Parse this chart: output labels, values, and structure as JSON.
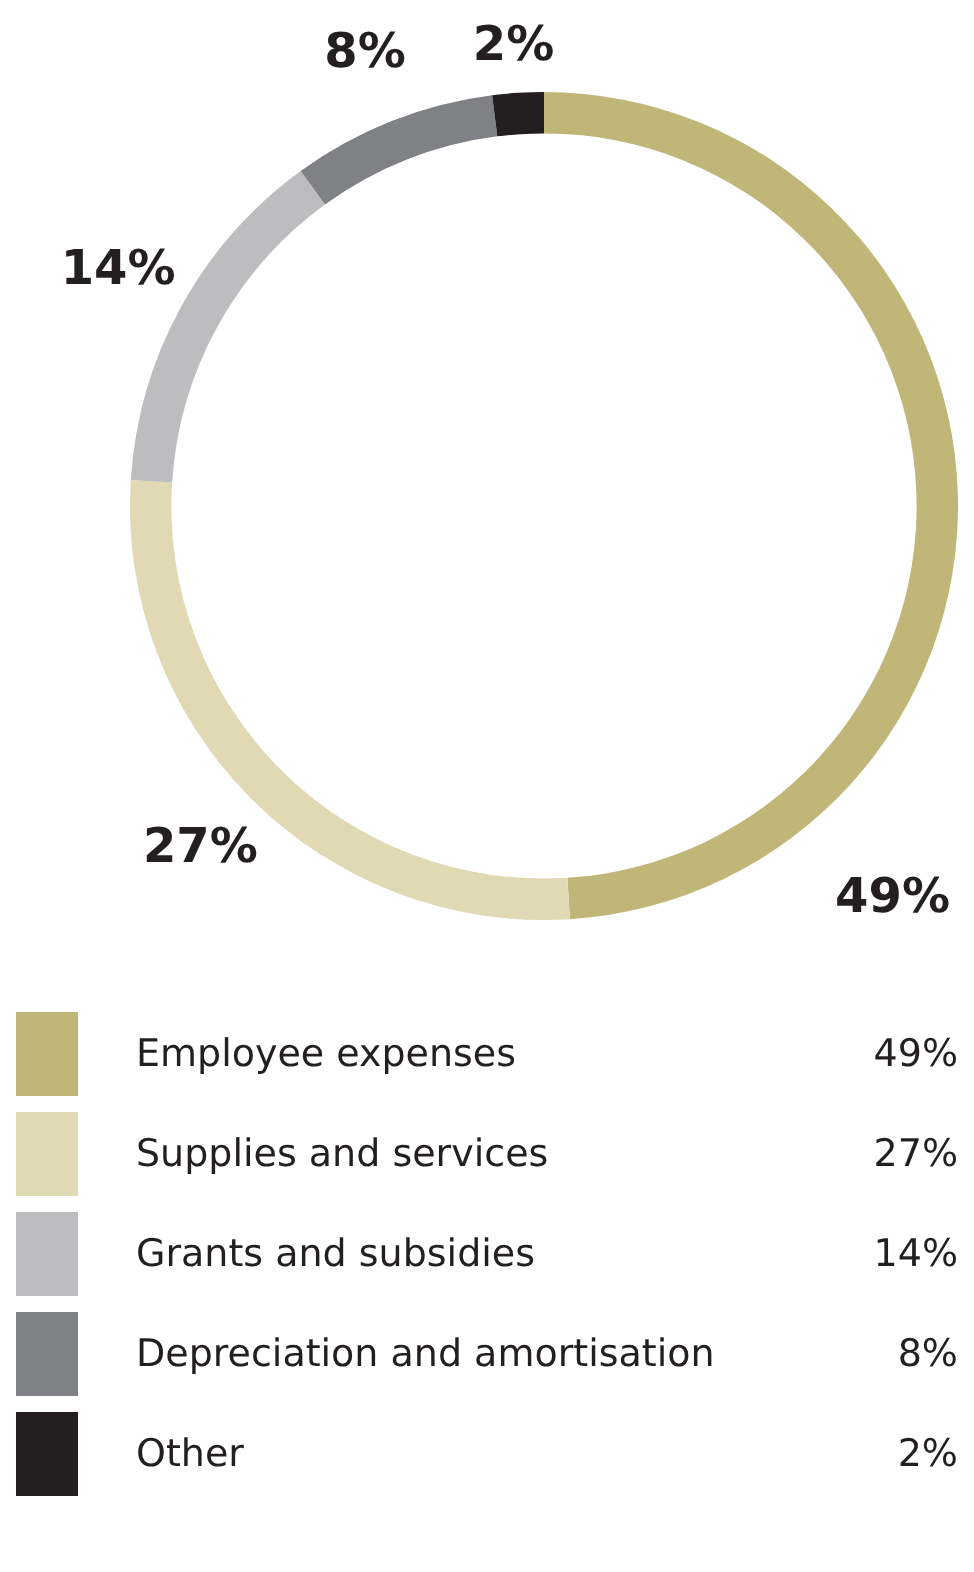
{
  "chart_data": {
    "type": "donut",
    "categories": [
      "Employee expenses",
      "Supplies and services",
      "Grants and subsidies",
      "Depreciation and amortisation",
      "Other"
    ],
    "values": [
      49,
      27,
      14,
      8,
      2
    ],
    "colors": [
      "#c0b677",
      "#e0d9b3",
      "#bdbdc0",
      "#808184",
      "#231f20"
    ],
    "value_labels": [
      "49%",
      "27%",
      "14%",
      "8%",
      "2%"
    ],
    "legend": "bottom"
  }
}
